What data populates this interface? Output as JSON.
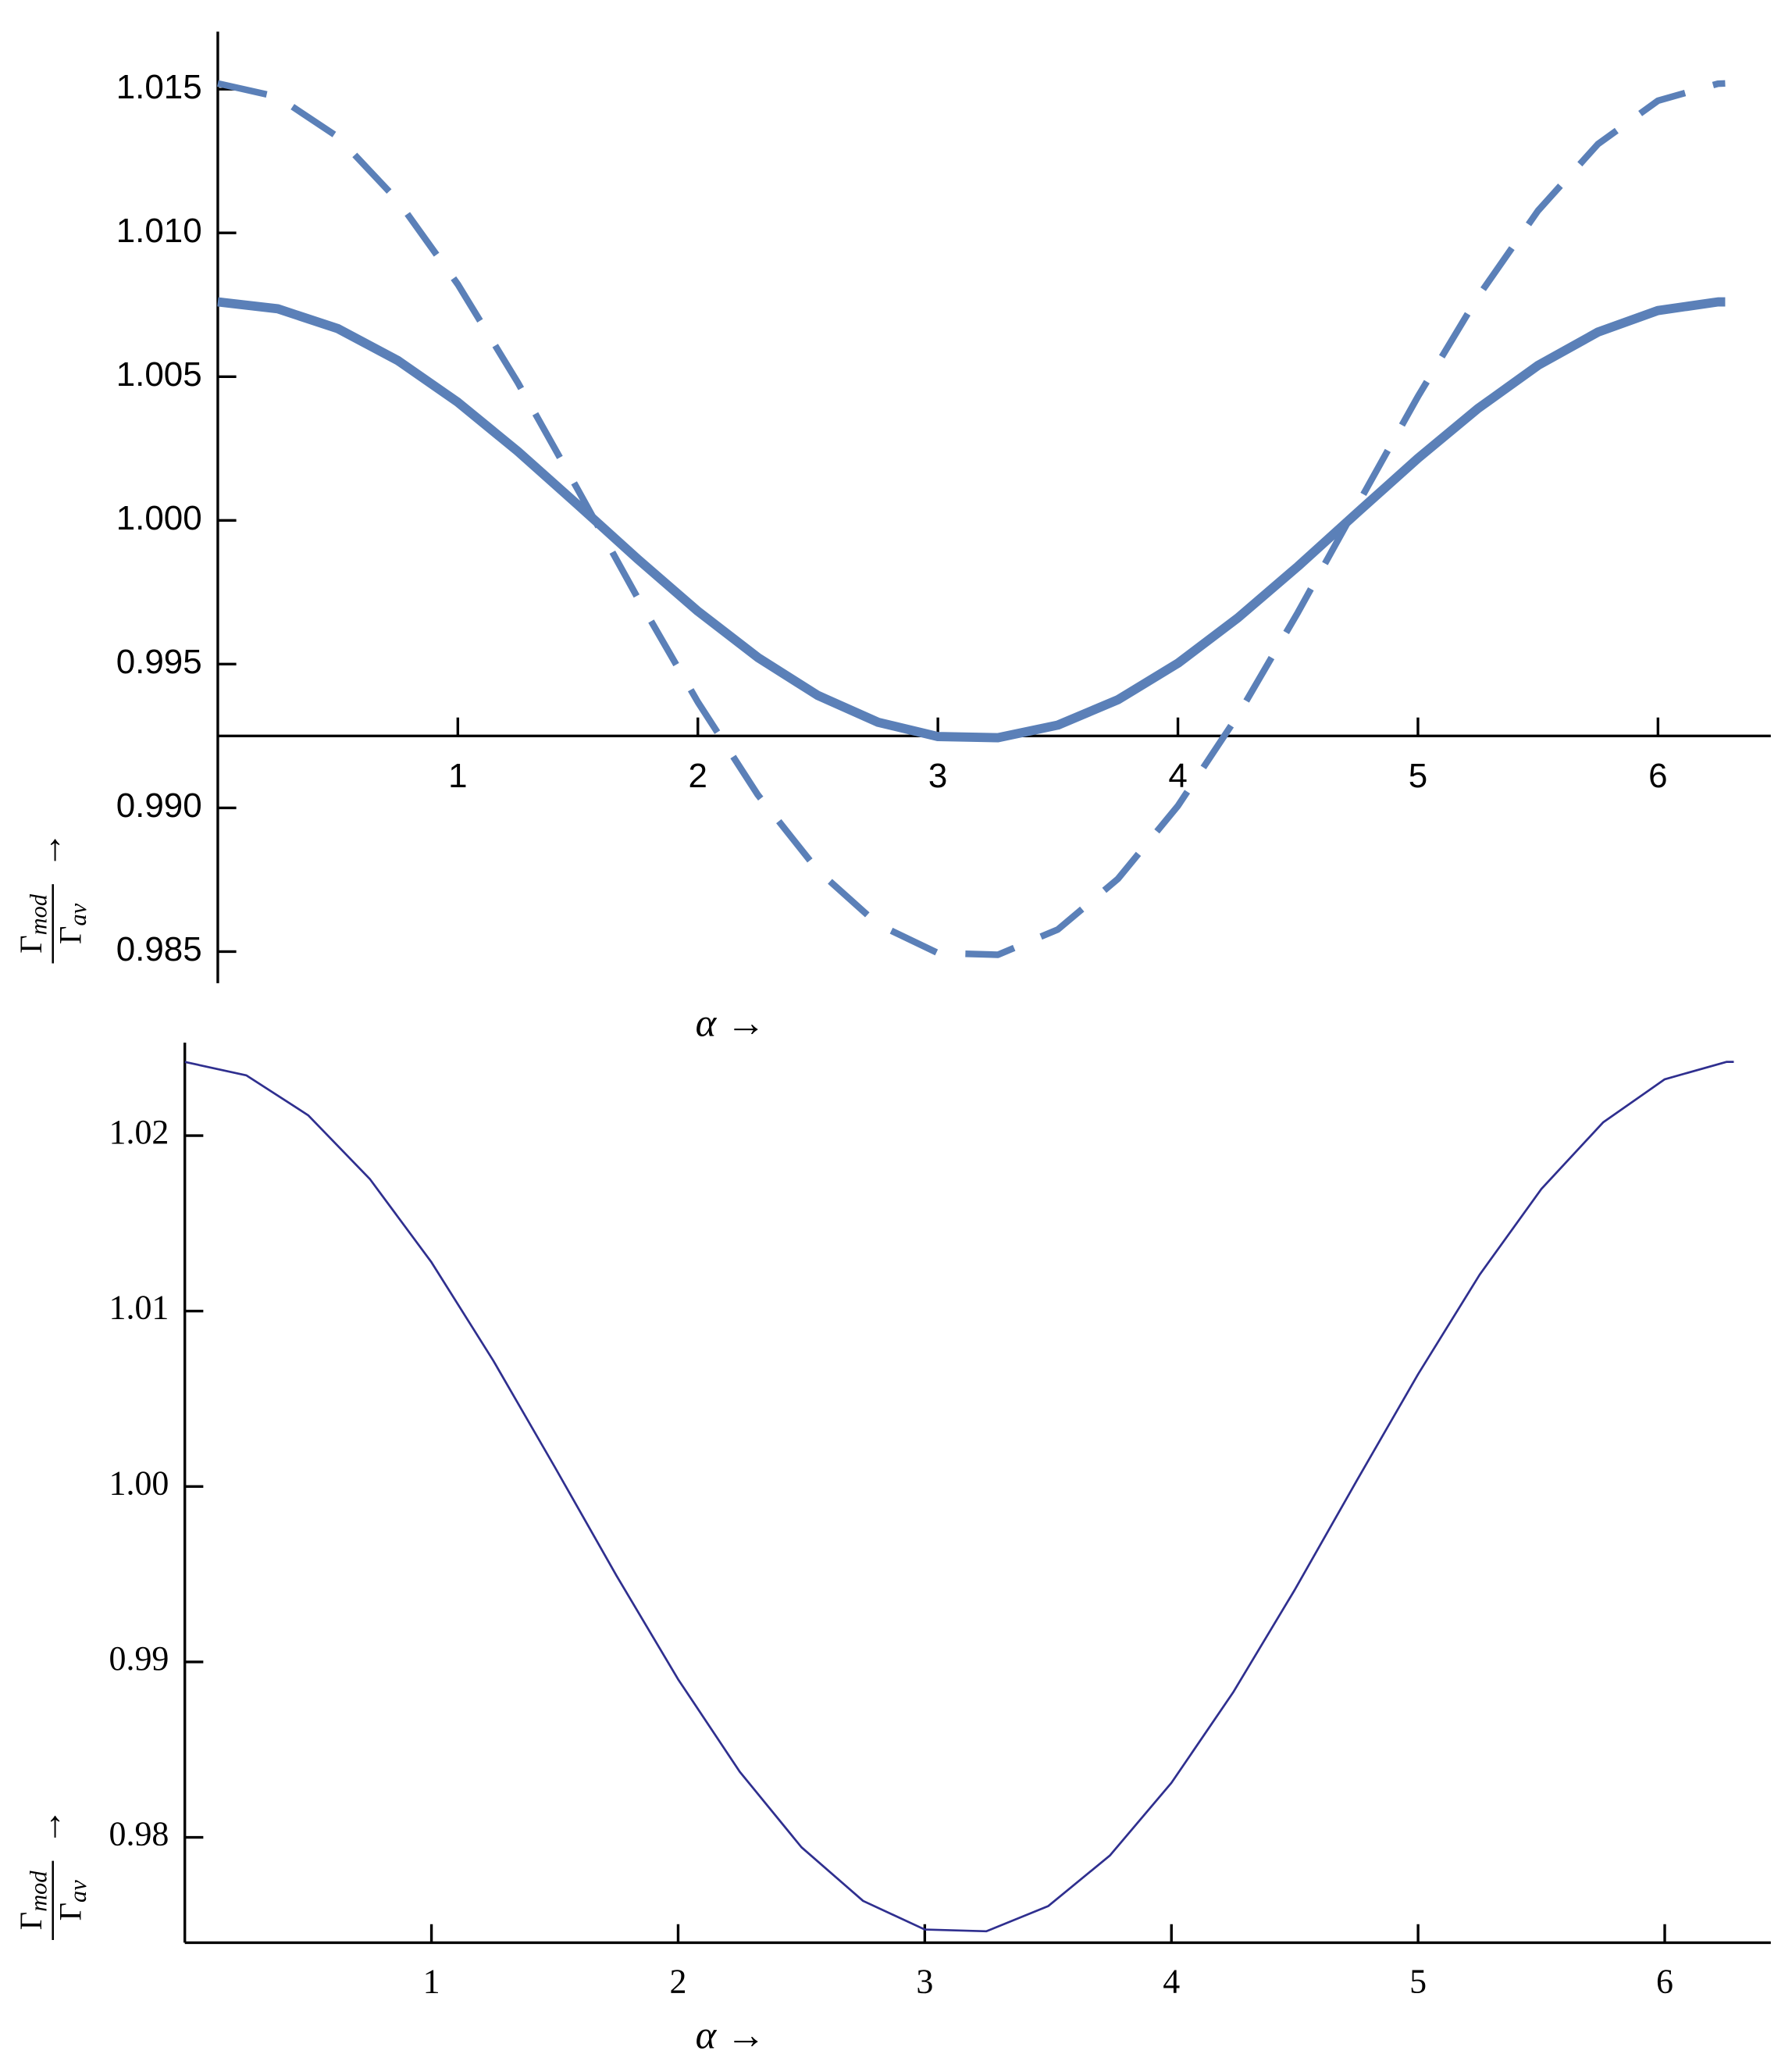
{
  "chart_data": [
    {
      "type": "line",
      "font": "sans",
      "xlabel": "α →",
      "ylabel": {
        "numerator": "Γ",
        "numerator_sub": "mod",
        "denominator": "Γ",
        "denominator_sub": "av",
        "arrow": "→"
      },
      "x": [
        0,
        0.25,
        0.5,
        0.75,
        1,
        1.25,
        1.5,
        1.75,
        2,
        2.25,
        2.5,
        2.75,
        3,
        3.25,
        3.5,
        3.75,
        4,
        4.25,
        4.5,
        4.75,
        5,
        5.25,
        5.5,
        5.75,
        6,
        6.25,
        6.28
      ],
      "series": [
        {
          "color": "#5b80b8",
          "line_width": 7,
          "dashed": false,
          "values": [
            1.0076,
            1.00736,
            1.00667,
            1.00556,
            1.00411,
            1.0024,
            1.00054,
            0.99865,
            0.99684,
            0.99523,
            0.99391,
            0.99298,
            0.99248,
            0.99244,
            0.99288,
            0.99376,
            0.99503,
            0.99661,
            0.9984,
            1.00029,
            1.00216,
            1.00389,
            1.00539,
            1.00655,
            1.0073,
            1.0076,
            1.0076
          ]
        },
        {
          "color": "#5b80b8",
          "line_width": 5,
          "dashed": true,
          "values": [
            1.0152,
            1.01473,
            1.01334,
            1.01112,
            1.00821,
            1.00479,
            1.00107,
            0.99729,
            0.99368,
            0.99045,
            0.98782,
            0.98595,
            0.98495,
            0.98489,
            0.98577,
            0.98753,
            0.99007,
            0.99322,
            0.9968,
            1.00057,
            1.00431,
            1.00778,
            1.01077,
            1.01309,
            1.0146,
            1.01519,
            1.0152
          ]
        }
      ],
      "xlim": [
        0,
        6.47
      ],
      "xticks": [
        1,
        2,
        3,
        4,
        5,
        6
      ],
      "ylim": [
        0.9839,
        1.017
      ],
      "yticks": [
        0.985,
        {
          "value": 0.99,
          "label": "0.990"
        },
        0.995,
        {
          "value": 1,
          "label": "1.000"
        },
        1.005,
        {
          "value": 1.01,
          "label": "1.010"
        },
        1.015
      ],
      "x_axis_at": 0.9925
    },
    {
      "type": "line",
      "font": "serif",
      "xlabel": "α →",
      "ylabel": {
        "numerator": "Γ",
        "numerator_sub": "mod",
        "denominator": "Γ",
        "denominator_sub": "av",
        "arrow": "→"
      },
      "x": [
        0,
        0.25,
        0.5,
        0.75,
        1,
        1.25,
        1.5,
        1.75,
        2,
        2.25,
        2.5,
        2.75,
        3,
        3.25,
        3.5,
        3.75,
        4,
        4.25,
        4.5,
        4.75,
        5,
        5.25,
        5.5,
        5.75,
        6,
        6.25,
        6.28
      ],
      "series": [
        {
          "color": "#2f2f8f",
          "line_width": 1.6,
          "dashed": false,
          "values": [
            1.0242,
            1.02343,
            1.02116,
            1.01753,
            1.01278,
            1.00719,
            1.00111,
            0.99492,
            0.98901,
            0.98374,
            0.97944,
            0.97638,
            0.97475,
            0.97465,
            0.97608,
            0.97896,
            0.98311,
            0.98826,
            0.99411,
            1.0003,
            1.0064,
            1.01208,
            1.01696,
            1.02075,
            1.02321,
            1.0242,
            1.0242
          ]
        }
      ],
      "xlim": [
        0,
        6.43
      ],
      "xticks": [
        1,
        2,
        3,
        4,
        5,
        6
      ],
      "ylim": [
        0.974,
        1.0253
      ],
      "yticks": [
        0.98,
        0.99,
        {
          "value": 1,
          "label": "1.00"
        },
        1.01,
        1.02
      ],
      "x_axis_at": 0.974
    }
  ]
}
